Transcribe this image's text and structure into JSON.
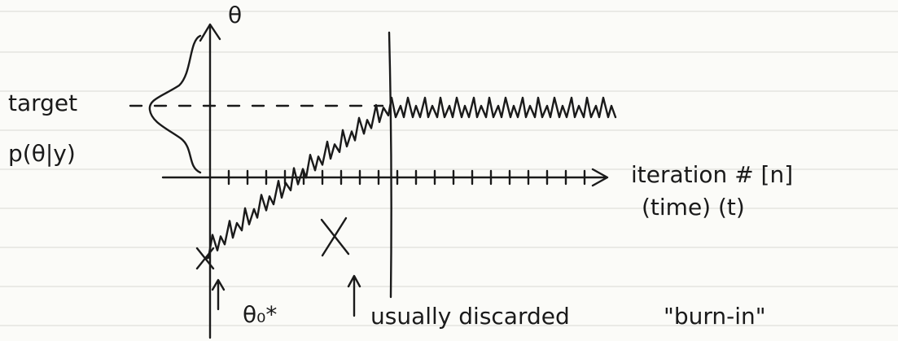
{
  "axis": {
    "y_label": "θ",
    "x_label": "iteration # [n]",
    "x_sublabel": "(time) (t)"
  },
  "annotations": {
    "target": "target",
    "density": "p(θ|y)",
    "start": "θ₀*",
    "discarded": "usually discarded",
    "burn_in": "\"burn-in\""
  }
}
